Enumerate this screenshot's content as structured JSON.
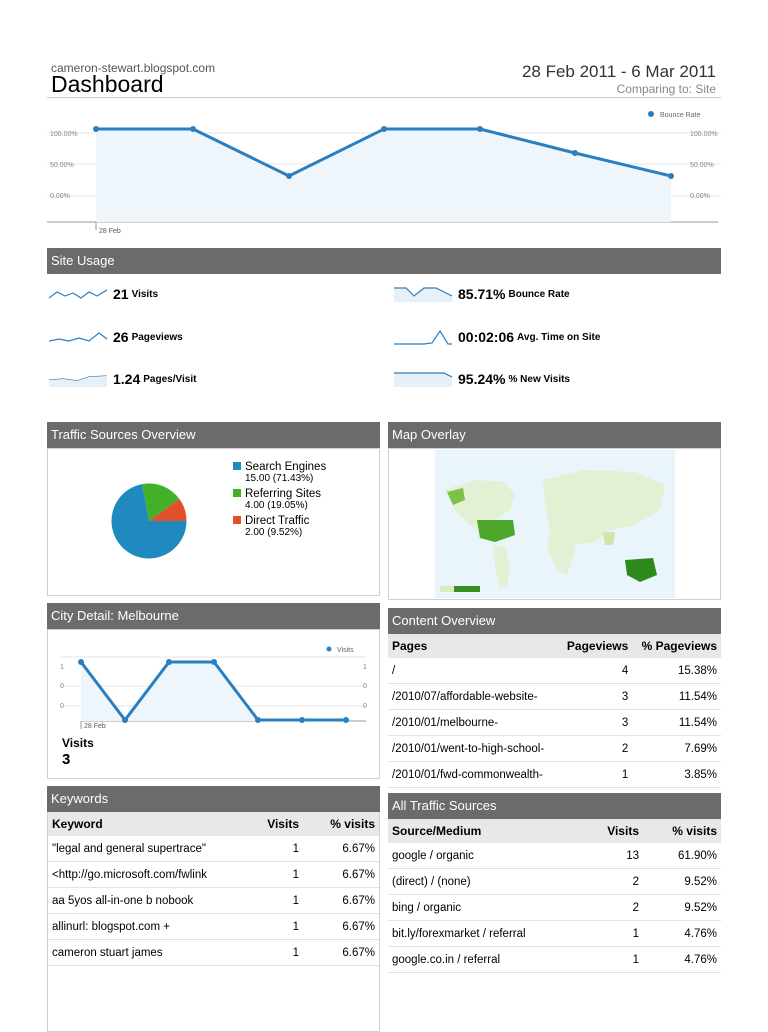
{
  "header": {
    "site": "cameron-stewart.blogspot.com",
    "title": "Dashboard",
    "date_range": "28 Feb 2011 - 6 Mar 2011",
    "comparing": "Comparing to: Site"
  },
  "main_chart": {
    "legend": "Bounce Rate",
    "left_ticks": [
      "100.00%",
      "50.00%",
      "0.00%"
    ],
    "right_ticks": [
      "100.00%",
      "50.00%",
      "0.00%"
    ],
    "x_label": "28 Feb",
    "color": "#2a7fc1"
  },
  "site_usage": {
    "title": "Site Usage",
    "metrics": [
      {
        "value": "21",
        "label": "Visits"
      },
      {
        "value": "85.71%",
        "label": "Bounce Rate"
      },
      {
        "value": "26",
        "label": "Pageviews"
      },
      {
        "value": "00:02:06",
        "label": "Avg. Time on Site"
      },
      {
        "value": "1.24",
        "label": "Pages/Visit"
      },
      {
        "value": "95.24%",
        "label": "% New Visits"
      }
    ]
  },
  "traffic_overview": {
    "title": "Traffic Sources Overview",
    "items": [
      {
        "name": "Search Engines",
        "detail": "15.00 (71.43%)",
        "color": "#1f8ac0"
      },
      {
        "name": "Referring Sites",
        "detail": "4.00 (19.05%)",
        "color": "#43b02a"
      },
      {
        "name": "Direct Traffic",
        "detail": "2.00 (9.52%)",
        "color": "#e0502a"
      }
    ]
  },
  "map_overlay": {
    "title": "Map Overlay"
  },
  "city_detail": {
    "title": "City Detail: Melbourne",
    "legend": "Visits",
    "left_ticks": [
      "1",
      "0",
      "0"
    ],
    "right_ticks": [
      "1",
      "0",
      "0"
    ],
    "x_label": "28 Feb",
    "visits_label": "Visits",
    "visits_value": "3"
  },
  "content_overview": {
    "title": "Content Overview",
    "headers": [
      "Pages",
      "Pageviews",
      "% Pageviews"
    ],
    "rows": [
      [
        "/",
        "4",
        "15.38%"
      ],
      [
        "/2010/07/affordable-website-",
        "3",
        "11.54%"
      ],
      [
        "/2010/01/melbourne-",
        "3",
        "11.54%"
      ],
      [
        "/2010/01/went-to-high-school-",
        "2",
        "7.69%"
      ],
      [
        "/2010/01/fwd-commonwealth-",
        "1",
        "3.85%"
      ]
    ]
  },
  "keywords": {
    "title": "Keywords",
    "headers": [
      "Keyword",
      "Visits",
      "% visits"
    ],
    "rows": [
      [
        "\"legal and general supertrace\"",
        "1",
        "6.67%"
      ],
      [
        "<http://go.microsoft.com/fwlink",
        "1",
        "6.67%"
      ],
      [
        "aa 5yos all-in-one b nobook",
        "1",
        "6.67%"
      ],
      [
        "allinurl: blogspot.com +",
        "1",
        "6.67%"
      ],
      [
        "cameron stuart james",
        "1",
        "6.67%"
      ]
    ]
  },
  "all_traffic": {
    "title": "All Traffic Sources",
    "headers": [
      "Source/Medium",
      "Visits",
      "% visits"
    ],
    "rows": [
      [
        "google / organic",
        "13",
        "61.90%"
      ],
      [
        "(direct) / (none)",
        "2",
        "9.52%"
      ],
      [
        "bing / organic",
        "2",
        "9.52%"
      ],
      [
        "bit.ly/forexmarket / referral",
        "1",
        "4.76%"
      ],
      [
        "google.co.in / referral",
        "1",
        "4.76%"
      ]
    ]
  }
}
